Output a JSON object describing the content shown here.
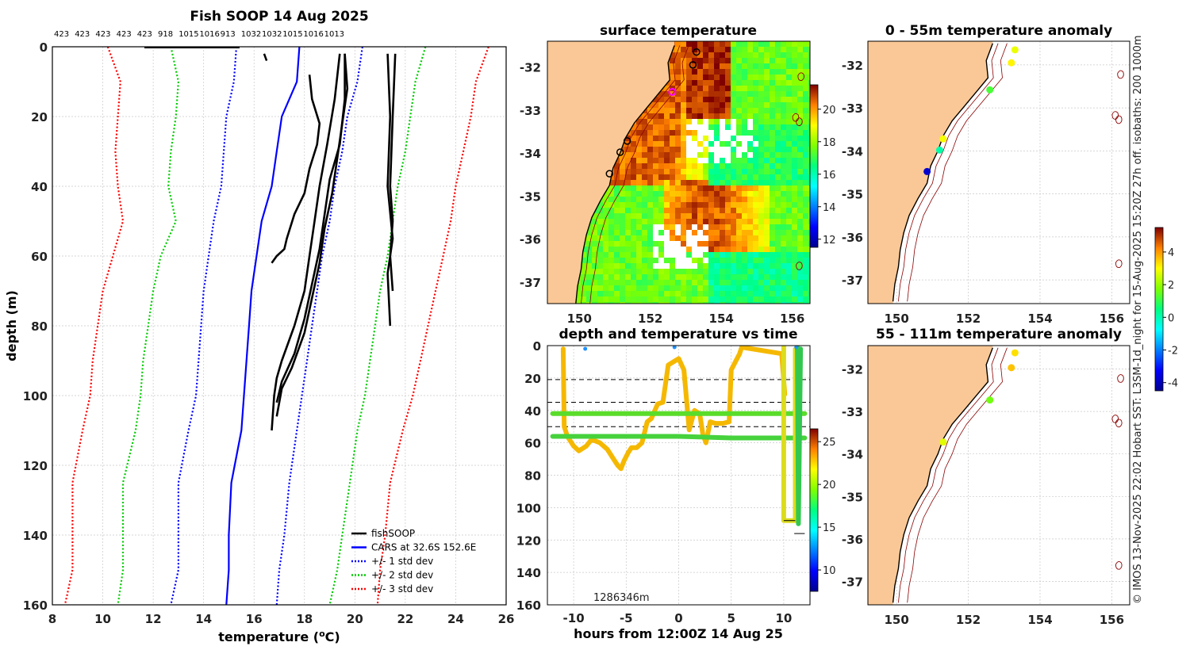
{
  "chart_data": [
    {
      "id": "profile",
      "type": "line",
      "title": "Fish SOOP 14 Aug 2025",
      "xlabel": "temperature (°C)",
      "ylabel": "depth (m)",
      "xlim": [
        8,
        26
      ],
      "ylim": [
        0,
        160
      ],
      "xticks": [
        8,
        10,
        12,
        14,
        16,
        18,
        20,
        22,
        24,
        26
      ],
      "yticks": [
        0,
        20,
        40,
        60,
        80,
        100,
        120,
        140,
        160
      ],
      "top_labels": [
        "423",
        "423",
        "423",
        "423",
        "423",
        "918",
        "1015",
        "1016",
        "913",
        "1032",
        "1032",
        "1015",
        "1016",
        "1013"
      ],
      "legend": [
        {
          "label": "fishSOOP",
          "color": "#000000",
          "style": "solid"
        },
        {
          "label": "CARS at 32.6S 152.6E",
          "color": "#0000ff",
          "style": "solid"
        },
        {
          "label": "+/- 1 std dev",
          "color": "#0000ff",
          "style": "dotted"
        },
        {
          "label": "+/- 2 std dev",
          "color": "#00cc00",
          "style": "dotted"
        },
        {
          "label": "+/- 3 std dev",
          "color": "#ff0000",
          "style": "dotted"
        }
      ],
      "depths": [
        0,
        10,
        20,
        30,
        40,
        50,
        60,
        70,
        80,
        90,
        100,
        110,
        125,
        140,
        150,
        160
      ],
      "cars_mean": [
        17.8,
        17.7,
        17.1,
        16.9,
        16.7,
        16.3,
        16.1,
        15.9,
        15.8,
        15.7,
        15.6,
        15.5,
        15.1,
        15.0,
        15.0,
        14.9
      ],
      "std_series": [
        {
          "name": "-1 std",
          "color": "#0000ff",
          "values": [
            15.3,
            15.2,
            14.9,
            14.8,
            14.7,
            14.4,
            14.2,
            14.0,
            13.9,
            13.8,
            13.7,
            13.4,
            13.0,
            13.0,
            13.0,
            12.7
          ]
        },
        {
          "name": "+1 std",
          "color": "#0000ff",
          "values": [
            20.3,
            20.1,
            19.7,
            19.5,
            19.2,
            19.0,
            18.7,
            18.5,
            18.3,
            18.1,
            17.9,
            17.7,
            17.4,
            17.2,
            17.0,
            16.9
          ]
        },
        {
          "name": "-2 std",
          "color": "#00cc00",
          "values": [
            12.7,
            13.0,
            12.9,
            12.7,
            12.6,
            12.9,
            12.3,
            12.0,
            11.8,
            11.6,
            11.5,
            11.3,
            10.8,
            10.8,
            10.8,
            10.6
          ]
        },
        {
          "name": "+2 std",
          "color": "#00cc00",
          "values": [
            22.8,
            22.4,
            22.2,
            22.0,
            21.7,
            21.5,
            21.3,
            21.0,
            20.8,
            20.6,
            20.4,
            20.1,
            19.8,
            19.5,
            19.3,
            19.0
          ]
        },
        {
          "name": "-3 std",
          "color": "#ff0000",
          "values": [
            10.2,
            10.7,
            10.6,
            10.5,
            10.6,
            10.8,
            10.4,
            10.0,
            9.8,
            9.6,
            9.5,
            9.2,
            8.8,
            8.8,
            8.8,
            8.5
          ]
        },
        {
          "name": "+3 std",
          "color": "#ff0000",
          "values": [
            25.3,
            24.8,
            24.6,
            24.3,
            24.0,
            23.8,
            23.5,
            23.2,
            22.9,
            22.6,
            22.3,
            21.9,
            21.4,
            21.2,
            21.0,
            20.9
          ]
        }
      ],
      "fish_profiles": [
        {
          "temp": [
            18.2,
            18.3,
            18.6,
            18.5,
            18.2,
            18.0,
            17.6,
            17.3,
            17.2,
            16.9,
            16.7
          ],
          "depth": [
            8,
            15,
            22,
            28,
            35,
            42,
            48,
            55,
            58,
            60,
            62
          ]
        },
        {
          "temp": [
            19.4,
            19.2,
            18.9,
            18.6,
            18.4,
            18.2,
            18.0,
            17.6,
            17.1,
            16.9,
            16.8,
            16.7
          ],
          "depth": [
            2,
            15,
            28,
            40,
            50,
            60,
            70,
            80,
            90,
            95,
            100,
            110
          ]
        },
        {
          "temp": [
            19.6,
            19.6,
            19.4,
            19.0,
            18.8,
            18.6,
            18.3,
            18.0,
            17.6,
            17.1,
            16.9
          ],
          "depth": [
            2,
            15,
            28,
            38,
            48,
            58,
            68,
            78,
            88,
            96,
            102
          ]
        },
        {
          "temp": [
            19.6,
            19.7,
            19.5,
            19.3,
            19.1,
            18.8,
            18.6,
            18.3,
            18.0,
            17.5,
            17.1,
            16.9
          ],
          "depth": [
            2,
            12,
            22,
            32,
            42,
            52,
            62,
            72,
            82,
            92,
            98,
            106
          ]
        },
        {
          "temp": [
            21.3,
            21.4,
            21.3,
            21.5,
            21.3,
            21.4
          ],
          "depth": [
            2,
            20,
            40,
            55,
            65,
            80
          ]
        },
        {
          "temp": [
            21.6,
            21.5,
            21.4,
            21.5,
            21.4,
            21.5
          ],
          "depth": [
            2,
            20,
            40,
            50,
            60,
            70
          ]
        }
      ]
    },
    {
      "id": "sst_map",
      "type": "heatmap",
      "title": "surface temperature",
      "xticks": [
        150,
        152,
        154,
        156
      ],
      "yticks": [
        -32,
        -33,
        -34,
        -35,
        -36,
        -37
      ],
      "colorbar_ticks": [
        12,
        14,
        16,
        18,
        20
      ],
      "colorbar_range": [
        11.5,
        21.5
      ]
    },
    {
      "id": "time_depth",
      "type": "scatter",
      "title": "depth and temperature vs time",
      "xlabel": "hours from 12:00Z 14 Aug 25",
      "xticks": [
        -10,
        -5,
        0,
        5,
        10
      ],
      "yticks": [
        0,
        20,
        40,
        60,
        80,
        100,
        120,
        140,
        160
      ],
      "xlim": [
        -12.5,
        12.5
      ],
      "ylim": [
        0,
        160
      ],
      "annotation": "1286346m",
      "dashed_lines": [
        21,
        35,
        50
      ],
      "colorbar_ticks": [
        10,
        15,
        20,
        25
      ],
      "colorbar_range": [
        7.5,
        26.5
      ],
      "tracks": [
        {
          "name": "orange track",
          "color": "#f5b800",
          "points": [
            [
              -11.0,
              2
            ],
            [
              -10.9,
              50
            ],
            [
              -10.6,
              56
            ],
            [
              -10.0,
              62
            ],
            [
              -9.5,
              65
            ],
            [
              -8.8,
              62
            ],
            [
              -8.3,
              58
            ],
            [
              -7.5,
              60
            ],
            [
              -6.8,
              64
            ],
            [
              -6.2,
              70
            ],
            [
              -5.8,
              74
            ],
            [
              -5.5,
              76
            ],
            [
              -5.2,
              71
            ],
            [
              -4.8,
              66
            ],
            [
              -4.5,
              63
            ],
            [
              -4.0,
              63
            ],
            [
              -3.5,
              60
            ],
            [
              -3.0,
              47
            ],
            [
              -2.6,
              45
            ],
            [
              -2.0,
              36
            ],
            [
              -1.5,
              35
            ],
            [
              -1.0,
              12
            ],
            [
              -0.5,
              10
            ],
            [
              0.0,
              8
            ],
            [
              0.5,
              15
            ],
            [
              1.0,
              52
            ],
            [
              1.5,
              40
            ],
            [
              2.0,
              42
            ],
            [
              2.3,
              55
            ],
            [
              2.6,
              60
            ],
            [
              3.0,
              47
            ],
            [
              3.5,
              48
            ],
            [
              4.2,
              48
            ],
            [
              4.8,
              47
            ],
            [
              5.0,
              15
            ],
            [
              5.4,
              10
            ],
            [
              5.8,
              5
            ],
            [
              6.0,
              1
            ],
            [
              9.8,
              5
            ],
            [
              10.1,
              30
            ]
          ]
        },
        {
          "name": "band 42m",
          "color": "#5adc2a",
          "points": [
            [
              -12.0,
              42
            ],
            [
              -6.0,
              42
            ],
            [
              0.0,
              42
            ],
            [
              5.0,
              42
            ],
            [
              12.0,
              42
            ]
          ]
        },
        {
          "name": "band 56m",
          "color": "#46d23c",
          "points": [
            [
              -12.0,
              56
            ],
            [
              -6.0,
              56
            ],
            [
              0.0,
              56
            ],
            [
              5.0,
              57
            ],
            [
              12.0,
              57
            ]
          ]
        },
        {
          "name": "cast A",
          "color": "#dcdc1e",
          "points": [
            [
              10.0,
              0
            ],
            [
              10.0,
              108
            ],
            [
              11.1,
              108
            ],
            [
              11.1,
              2
            ]
          ]
        },
        {
          "name": "cast B",
          "color": "#32c850",
          "points": [
            [
              11.3,
              1
            ],
            [
              11.4,
              110
            ],
            [
              11.6,
              2
            ]
          ]
        }
      ],
      "dots": [
        [
          -8.9,
          1
        ],
        [
          -0.4,
          0
        ],
        [
          11.2,
          0
        ]
      ]
    },
    {
      "id": "anom_0_55",
      "type": "scatter",
      "title": "0 - 55m temperature anomaly",
      "xticks": [
        150,
        152,
        154,
        156
      ],
      "yticks": [
        -32,
        -33,
        -34,
        -35,
        -36,
        -37
      ],
      "points": [
        {
          "lon": 153.3,
          "lat": -31.65,
          "anomaly": 2.8
        },
        {
          "lon": 153.2,
          "lat": -31.95,
          "anomaly": 3.1
        },
        {
          "lon": 152.6,
          "lat": -32.58,
          "anomaly": 1.2
        },
        {
          "lon": 151.3,
          "lat": -33.72,
          "anomaly": 2.9
        },
        {
          "lon": 151.2,
          "lat": -33.98,
          "anomaly": 0.1
        },
        {
          "lon": 150.85,
          "lat": -34.48,
          "anomaly": -3.8
        }
      ]
    },
    {
      "id": "anom_55_111",
      "type": "scatter",
      "title": "55 - 111m temperature anomaly",
      "xticks": [
        150,
        152,
        154,
        156
      ],
      "yticks": [
        -32,
        -33,
        -34,
        -35,
        -36,
        -37
      ],
      "colorbar_ticks": [
        -4,
        -2,
        0,
        2,
        4
      ],
      "colorbar_range": [
        -4.5,
        5.5
      ],
      "points": [
        {
          "lon": 153.3,
          "lat": -31.62,
          "anomaly": 3.3
        },
        {
          "lon": 153.2,
          "lat": -31.97,
          "anomaly": 3.6
        },
        {
          "lon": 152.6,
          "lat": -32.73,
          "anomaly": 1.6
        },
        {
          "lon": 151.3,
          "lat": -33.72,
          "anomaly": 2.7
        }
      ]
    }
  ],
  "credit": "© IMOS 13-Nov-2025 22:02 Hobart SST: L3SM-1d_night for 15-Aug-2025 15:20Z 27h off. isobaths: 200  1000m",
  "colors": {
    "land": "#fac896",
    "grid": "#c8c8c8"
  }
}
